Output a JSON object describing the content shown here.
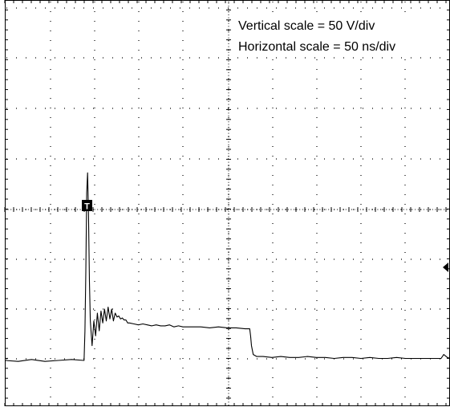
{
  "chart_data": {
    "type": "line",
    "grid": true,
    "divisions": {
      "horizontal": 10,
      "vertical": 8
    },
    "annotations": [
      "Vertical scale = 50 V/div",
      "Horizontal scale = 50 ns/div"
    ],
    "trigger_marker": "T",
    "trace_color": "#000000",
    "grid_color": "#000000",
    "x_unit": "ns",
    "y_unit": "V",
    "series": [
      {
        "x": [
          0,
          15,
          30,
          45,
          60,
          75,
          89,
          90,
          91,
          92,
          93,
          94,
          95,
          96,
          98,
          100,
          102,
          104,
          106,
          108,
          110,
          112,
          114,
          116,
          118,
          120,
          122,
          124,
          126,
          128,
          130,
          132,
          134,
          136,
          138,
          140,
          145,
          150,
          155,
          160,
          165,
          170,
          175,
          180,
          185,
          190,
          195,
          200,
          210,
          220,
          230,
          240,
          250,
          260,
          270,
          275,
          276,
          277,
          279,
          283,
          290,
          300,
          310,
          320,
          330,
          340,
          350,
          360,
          370,
          380,
          390,
          400,
          410,
          420,
          430,
          440,
          450,
          460,
          470,
          480,
          490,
          493,
          497,
          500
        ],
        "y": [
          0,
          -1,
          1,
          -1,
          0,
          1,
          0,
          30,
          90,
          170,
          190,
          150,
          80,
          40,
          15,
          40,
          25,
          48,
          30,
          50,
          38,
          52,
          40,
          54,
          42,
          52,
          40,
          48,
          44,
          45,
          42,
          43,
          41,
          41,
          38,
          38,
          37,
          36,
          37,
          36,
          35,
          36,
          35,
          35,
          36,
          34,
          35,
          34,
          34,
          34,
          33,
          34,
          33,
          33,
          32,
          32,
          25,
          15,
          6,
          4,
          4,
          3,
          4,
          3,
          3,
          4,
          3,
          3,
          2,
          3,
          3,
          2,
          3,
          2,
          2,
          3,
          2,
          2,
          2,
          2,
          2,
          6,
          3,
          2
        ]
      }
    ]
  }
}
